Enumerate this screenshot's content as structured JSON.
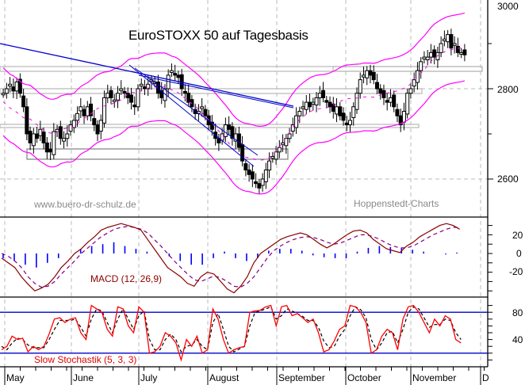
{
  "chart_data": [
    {
      "type": "candlestick",
      "title": "EuroSTOXX 50 auf Tagesbasis",
      "watermarks": [
        "www.buero-dr-schulz.de",
        "Hoppenstedt-Charts"
      ],
      "yaxis": {
        "ticks": [
          2600,
          2800,
          3000
        ],
        "range": [
          2535,
          3010
        ],
        "position": "right"
      },
      "xaxis": {
        "months": [
          "May",
          "June",
          "July",
          "August",
          "September",
          "October",
          "November",
          "D"
        ]
      },
      "overlays": [
        "Bollinger Bands (upper/lower, magenta solid)",
        "Moving average (magenta dashed)",
        "Blue downtrend lines",
        "Gray support/resistance boxes"
      ],
      "close_approx": [
        2790,
        2800,
        2810,
        2795,
        2815,
        2790,
        2760,
        2700,
        2680,
        2700,
        2690,
        2710,
        2680,
        2660,
        2660,
        2705,
        2710,
        2690,
        2690,
        2700,
        2720,
        2730,
        2745,
        2760,
        2740,
        2760,
        2740,
        2720,
        2700,
        2730,
        2780,
        2790,
        2780,
        2775,
        2790,
        2800,
        2790,
        2780,
        2770,
        2760,
        2800,
        2810,
        2800,
        2810,
        2820,
        2815,
        2790,
        2780,
        2800,
        2830,
        2840,
        2830,
        2825,
        2800,
        2790,
        2770,
        2760,
        2745,
        2750,
        2760,
        2740,
        2720,
        2710,
        2690,
        2680,
        2700,
        2720,
        2710,
        2690,
        2700,
        2670,
        2640,
        2620,
        2610,
        2600,
        2590,
        2580,
        2600,
        2620,
        2640,
        2650,
        2660,
        2670,
        2680,
        2690,
        2700,
        2720,
        2740,
        2750,
        2760,
        2770,
        2760,
        2770,
        2780,
        2790,
        2780,
        2770,
        2760,
        2750,
        2760,
        2740,
        2730,
        2720,
        2730,
        2760,
        2790,
        2820,
        2830,
        2840,
        2830,
        2820,
        2800,
        2790,
        2780,
        2770,
        2780,
        2760,
        2740,
        2720,
        2750,
        2790,
        2800,
        2820,
        2840,
        2860,
        2870,
        2870,
        2880,
        2870,
        2880,
        2900,
        2910,
        2920,
        2890,
        2900,
        2880,
        2880,
        2875
      ],
      "trend_lines": "Descending blue lines from upper-left; converging into August low",
      "support_boxes_approx": [
        [
          2840,
          2850
        ],
        [
          2795,
          2805
        ],
        [
          2710,
          2715
        ],
        [
          2640,
          2660
        ]
      ]
    },
    {
      "type": "line",
      "title": "MACD (12, 26,9)",
      "yaxis": {
        "ticks": [
          20,
          0,
          -20
        ],
        "range": [
          -40,
          40
        ]
      },
      "series": [
        {
          "name": "MACD",
          "style": "dark red solid",
          "values": [
            -5,
            -10,
            -15,
            -25,
            -33,
            -40,
            -37,
            -33,
            -25,
            -15,
            -8,
            0,
            5,
            12,
            18,
            25,
            28,
            30,
            32,
            30,
            28,
            25,
            15,
            5,
            -5,
            -15,
            -20,
            -25,
            -32,
            -35,
            -25,
            -20,
            -22,
            -30,
            -38,
            -42,
            -35,
            -25,
            -10,
            0,
            5,
            10,
            15,
            18,
            20,
            22,
            20,
            15,
            10,
            6,
            10,
            15,
            20,
            24,
            25,
            22,
            15,
            10,
            5,
            3,
            1,
            8,
            12,
            18,
            22,
            26,
            30,
            32,
            30,
            26
          ]
        },
        {
          "name": "Signal",
          "style": "purple dashed",
          "values": [
            0,
            -3,
            -8,
            -15,
            -25,
            -32,
            -36,
            -35,
            -30,
            -22,
            -15,
            -8,
            0,
            6,
            12,
            18,
            22,
            26,
            28,
            29,
            28,
            26,
            22,
            15,
            8,
            0,
            -8,
            -15,
            -22,
            -28,
            -30,
            -27,
            -24,
            -26,
            -30,
            -35,
            -36,
            -32,
            -25,
            -15,
            -5,
            3,
            8,
            12,
            15,
            17,
            18,
            17,
            15,
            12,
            10,
            11,
            14,
            17,
            20,
            20,
            18,
            15,
            11,
            8,
            6,
            6,
            8,
            12,
            16,
            20,
            23,
            26,
            28,
            28
          ]
        },
        {
          "name": "Histogram",
          "style": "blue bars",
          "values": [
            -5,
            -8,
            -12,
            -15,
            -10,
            -5,
            0,
            5,
            8,
            10,
            12,
            8,
            5,
            2,
            0,
            -3,
            -8,
            -12,
            -12,
            -5,
            2,
            -5,
            -8,
            -5,
            3,
            5,
            5,
            3,
            -2,
            -4,
            -5,
            -5,
            2,
            6,
            8,
            7,
            6,
            4,
            2,
            0,
            -1,
            1
          ]
        }
      ]
    },
    {
      "type": "line",
      "title": "Slow Stochastik (5, 3, 3)",
      "yaxis": {
        "ticks": [
          80,
          40
        ],
        "reference_lines": [
          80,
          20
        ],
        "range": [
          0,
          100
        ]
      },
      "series": [
        {
          "name": "%K",
          "style": "red solid",
          "values": [
            25,
            30,
            45,
            40,
            42,
            22,
            30,
            25,
            30,
            48,
            70,
            72,
            65,
            70,
            72,
            50,
            40,
            90,
            85,
            80,
            55,
            45,
            88,
            85,
            60,
            50,
            88,
            80,
            20,
            22,
            30,
            50,
            45,
            35,
            10,
            40,
            30,
            45,
            20,
            25,
            85,
            70,
            40,
            20,
            25,
            28,
            30,
            80,
            82,
            83,
            88,
            90,
            60,
            88,
            90,
            75,
            78,
            72,
            65,
            70,
            50,
            22,
            25,
            38,
            55,
            60,
            90,
            88,
            80,
            65,
            20,
            25,
            45,
            55,
            50,
            25,
            70,
            88,
            90,
            80,
            65,
            50,
            70,
            60,
            75,
            70,
            40,
            35
          ]
        },
        {
          "name": "%D",
          "style": "black dashed",
          "values": [
            30,
            25,
            35,
            42,
            40,
            32,
            28,
            28,
            28,
            40,
            55,
            68,
            68,
            68,
            70,
            58,
            45,
            70,
            85,
            82,
            65,
            50,
            70,
            85,
            70,
            55,
            75,
            82,
            40,
            25,
            25,
            40,
            48,
            40,
            22,
            30,
            32,
            40,
            30,
            25,
            65,
            78,
            55,
            30,
            22,
            26,
            30,
            60,
            80,
            82,
            85,
            88,
            70,
            75,
            85,
            82,
            78,
            74,
            68,
            68,
            58,
            38,
            28,
            30,
            45,
            55,
            75,
            88,
            84,
            72,
            40,
            25,
            35,
            50,
            52,
            35,
            55,
            80,
            88,
            85,
            72,
            58,
            62,
            62,
            70,
            68,
            50,
            40
          ]
        }
      ]
    }
  ],
  "title": "EuroSTOXX 50 auf Tagesbasis",
  "watermark_left": "www.buero-dr-schulz.de",
  "watermark_right": "Hoppenstedt-Charts",
  "macd_label": "MACD (12, 26,9)",
  "stoch_label": "Slow Stochastik (5, 3, 3)",
  "price_axis": {
    "t3000": "3000",
    "t2800": "2800",
    "t2600": "2600"
  },
  "macd_axis": {
    "t20": "20",
    "t0": "0",
    "tm20": "-20"
  },
  "stoch_axis": {
    "t80": "80",
    "t40": "40"
  },
  "months": {
    "may": "May",
    "june": "June",
    "july": "July",
    "august": "August",
    "september": "September",
    "october": "October",
    "november": "November",
    "dec": "D"
  },
  "colors": {
    "trend": "#0000cc",
    "bollinger": "#ff00ff",
    "macd": "#8b0000",
    "signal": "#800080",
    "histogram": "#0000ff",
    "stoch_k": "#ff0000",
    "stoch_d": "#000000",
    "refline": "#0000cc",
    "grid": "#bbbbbb"
  }
}
